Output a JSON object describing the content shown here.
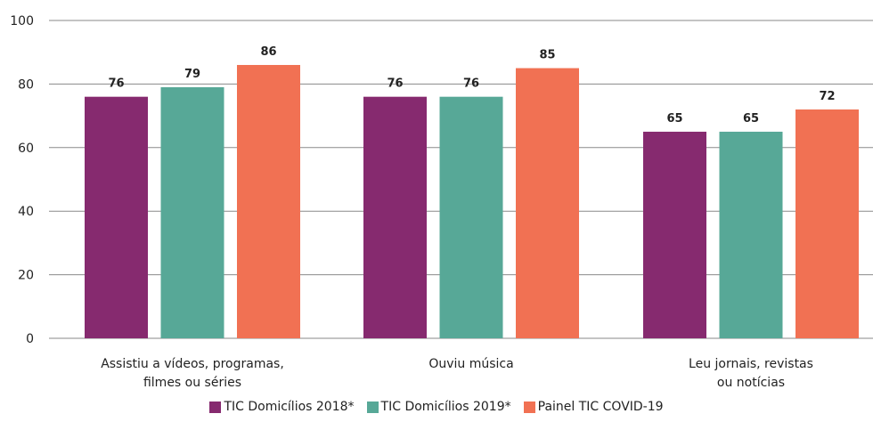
{
  "chart_data": {
    "type": "bar",
    "categories": [
      [
        "Assistiu a vídeos, programas,",
        "filmes ou séries"
      ],
      [
        "Ouviu música"
      ],
      [
        "Leu jornais, revistas",
        "ou notícias"
      ]
    ],
    "series": [
      {
        "name": "TIC Domicílios 2018*",
        "color": "#862a6f",
        "values": [
          76,
          76,
          65
        ]
      },
      {
        "name": "TIC Domicílios 2019*",
        "color": "#57a897",
        "values": [
          79,
          76,
          65
        ]
      },
      {
        "name": "Painel TIC COVID-19",
        "color": "#f17153",
        "values": [
          86,
          85,
          72
        ]
      }
    ],
    "ylim": [
      0,
      100
    ],
    "yticks": [
      0,
      20,
      40,
      60,
      80,
      100
    ],
    "grid": true,
    "legend_position": "bottom",
    "data_labels": true
  }
}
